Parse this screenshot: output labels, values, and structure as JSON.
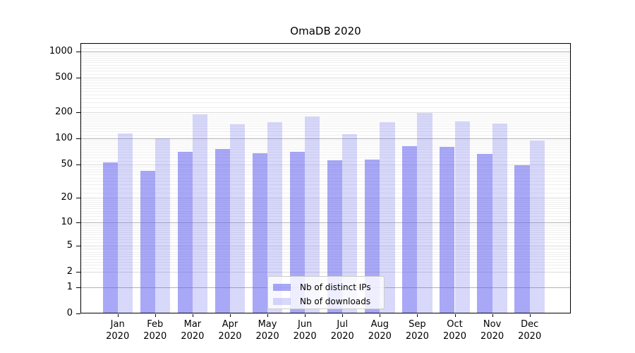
{
  "chart_data": {
    "type": "bar",
    "title": "OmaDB 2020",
    "categories": [
      "Jan",
      "Feb",
      "Mar",
      "Apr",
      "May",
      "Jun",
      "Jul",
      "Aug",
      "Sep",
      "Oct",
      "Nov",
      "Dec"
    ],
    "x_year": "2020",
    "series": [
      {
        "name": "Nb of distinct IPs",
        "color": "#5a5af0",
        "opacity": 0.53,
        "values": [
          53,
          42,
          70,
          75,
          67,
          70,
          56,
          57,
          81,
          80,
          66,
          49
        ]
      },
      {
        "name": "Nb of downloads",
        "color": "#5a5af0",
        "opacity": 0.24,
        "values": [
          115,
          101,
          188,
          145,
          153,
          181,
          113,
          153,
          198,
          157,
          149,
          95
        ]
      }
    ],
    "y_ticks": [
      0,
      1,
      2,
      5,
      10,
      20,
      50,
      100,
      200,
      500,
      1000
    ],
    "scale": "log1p",
    "ylim": [
      0,
      1250
    ],
    "grid": true,
    "legend_position": "lower center"
  },
  "colors": {
    "grid_decade": "#b3b3b3",
    "grid_mid": "#dcdcdc",
    "grid_minor": "#efefef",
    "axis": "#000000",
    "legend_border": "#cccccc",
    "background": "#ffffff"
  }
}
